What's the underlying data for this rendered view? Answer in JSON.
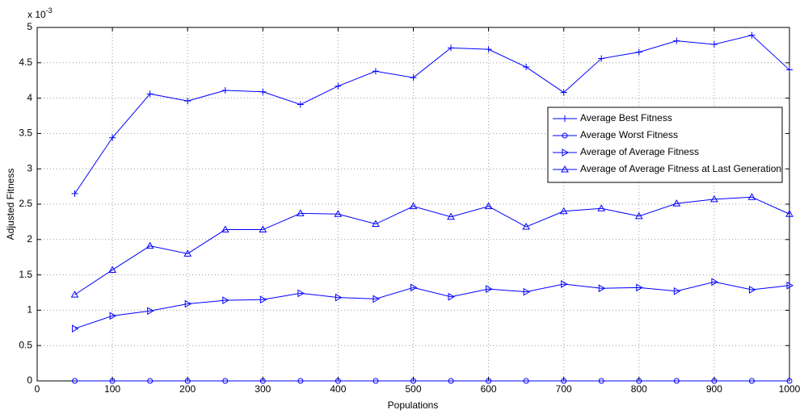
{
  "chart_data": {
    "type": "line",
    "xlabel": "Populations",
    "ylabel": "Adjusted Fitness",
    "y_multiplier": {
      "base": "x 10",
      "exponent": "-3"
    },
    "x": [
      50,
      100,
      150,
      200,
      250,
      300,
      350,
      400,
      450,
      500,
      550,
      600,
      650,
      700,
      750,
      800,
      850,
      900,
      950,
      1000
    ],
    "series": [
      {
        "name": "Average Best Fitness",
        "color": "#0000ff",
        "marker": "plus",
        "values": [
          2.65,
          3.44,
          4.06,
          3.96,
          4.11,
          4.09,
          3.91,
          4.17,
          4.38,
          4.29,
          4.71,
          4.69,
          4.44,
          4.08,
          4.56,
          4.65,
          4.81,
          4.76,
          4.89,
          4.4
        ]
      },
      {
        "name": "Average Worst Fitness",
        "color": "#0000ff",
        "marker": "circle",
        "values": [
          0,
          0,
          0,
          0,
          0,
          0,
          0,
          0,
          0,
          0,
          0,
          0,
          0,
          0,
          0,
          0,
          0,
          0,
          0,
          0
        ]
      },
      {
        "name": "Average of Average Fitness",
        "color": "#0000ff",
        "marker": "triangle-right",
        "values": [
          0.74,
          0.92,
          0.99,
          1.09,
          1.14,
          1.15,
          1.24,
          1.18,
          1.16,
          1.32,
          1.19,
          1.3,
          1.26,
          1.37,
          1.31,
          1.32,
          1.27,
          1.4,
          1.29,
          1.35
        ]
      },
      {
        "name": "Average of Average Fitness at Last Generation",
        "color": "#0000ff",
        "marker": "triangle-up",
        "values": [
          1.22,
          1.57,
          1.91,
          1.8,
          2.14,
          2.14,
          2.37,
          2.36,
          2.22,
          2.47,
          2.32,
          2.47,
          2.18,
          2.4,
          2.44,
          2.33,
          2.51,
          2.57,
          2.6,
          2.36
        ]
      }
    ],
    "xlim": [
      0,
      1000
    ],
    "xticks": [
      0,
      100,
      200,
      300,
      400,
      500,
      600,
      700,
      800,
      900,
      1000
    ],
    "ylim": [
      0,
      5
    ],
    "yticks": [
      0,
      0.5,
      1,
      1.5,
      2,
      2.5,
      3,
      3.5,
      4,
      4.5,
      5
    ],
    "grid": true,
    "legend": "right"
  }
}
